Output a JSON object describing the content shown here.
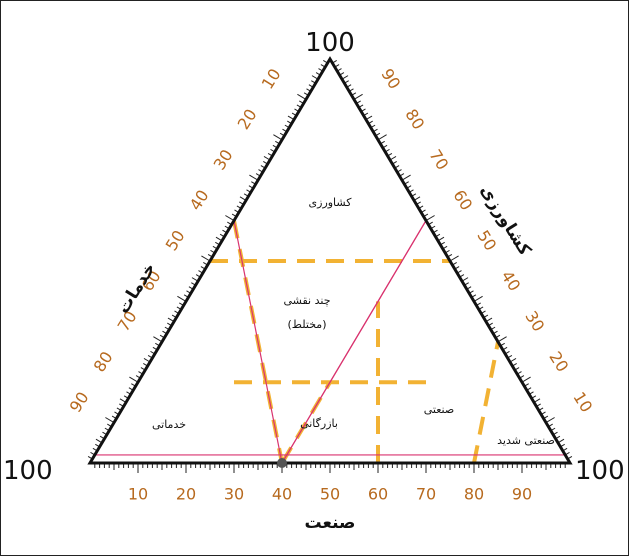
{
  "chart_data": {
    "type": "ternary",
    "corner_labels": {
      "top": "100",
      "left": "100",
      "right": "100"
    },
    "axes": {
      "industry": {
        "title": "صنعت",
        "ticks": [
          "10",
          "20",
          "30",
          "40",
          "50",
          "60",
          "70",
          "80",
          "90"
        ]
      },
      "agriculture": {
        "title": "کشاورزی",
        "ticks": [
          "10",
          "20",
          "30",
          "40",
          "50",
          "60",
          "70",
          "80",
          "90"
        ]
      },
      "services": {
        "title": "خدمات",
        "ticks": [
          "10",
          "20",
          "30",
          "40",
          "50",
          "60",
          "70",
          "80",
          "90"
        ]
      }
    },
    "zones": [
      {
        "id": "agriculture",
        "label": "کشاورزی"
      },
      {
        "id": "mixed",
        "label_line1": "چند نقشی",
        "label_line2": "(مختلط)"
      },
      {
        "id": "services",
        "label": "خدماتی"
      },
      {
        "id": "commerce",
        "label": "بازرگانی"
      },
      {
        "id": "industrial",
        "label": "صنعتی"
      },
      {
        "id": "heavy-industrial",
        "label": "صنعتی شدید"
      }
    ],
    "boundaries": [
      {
        "name": "agriculture-50",
        "axis": "agriculture",
        "value": 50
      },
      {
        "name": "agriculture-20",
        "axis": "agriculture",
        "value": 20
      },
      {
        "name": "services-60",
        "axis": "services",
        "value": 60
      },
      {
        "name": "industry-60",
        "axis": "industry",
        "value": 60
      },
      {
        "name": "industry-80",
        "axis": "industry",
        "value": 80
      }
    ],
    "example_point": {
      "industry": 40,
      "agriculture": 0,
      "services": 60
    },
    "colors": {
      "triangle": "#111111",
      "boundary": "#f2b233",
      "guide": "#d9336f",
      "tick_text": "#b76a1f",
      "point": "#555555"
    }
  }
}
